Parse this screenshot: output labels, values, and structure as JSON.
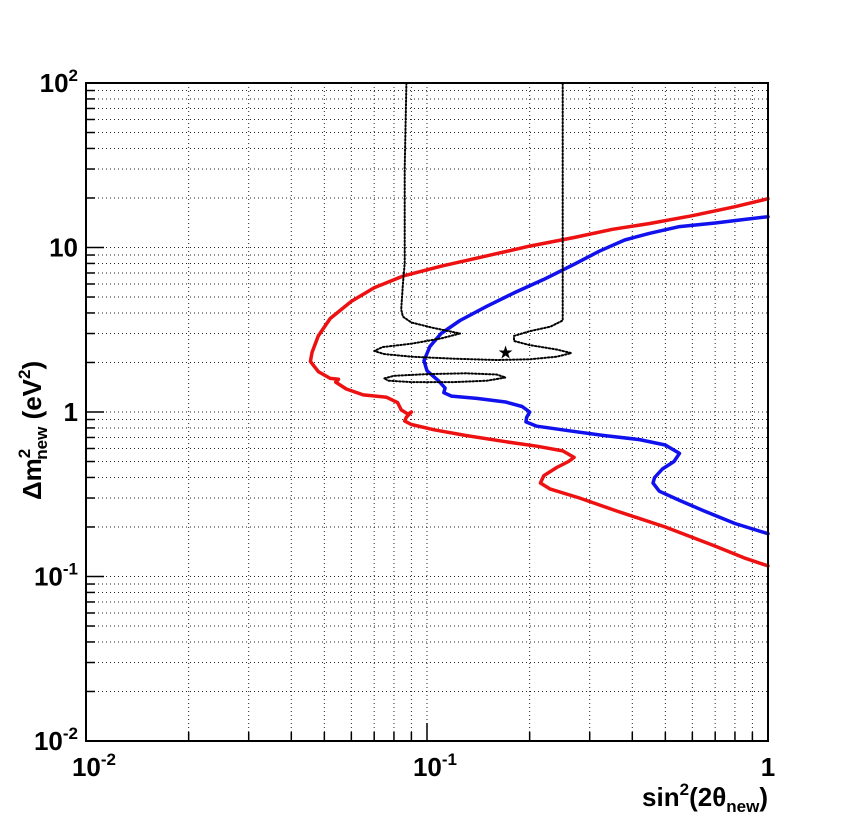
{
  "chart_data": {
    "type": "line",
    "xscale": "log",
    "yscale": "log",
    "xlim": [
      0.01,
      1
    ],
    "ylim": [
      0.01,
      100
    ],
    "grid": true,
    "xlabel": {
      "base": "sin",
      "sup": "2",
      "open": "(2θ",
      "sub": "new",
      "close": ")"
    },
    "ylabel": {
      "base": "Δm",
      "sup": "2",
      "sub": "new",
      "unit_open": " (eV",
      "unit_sup": "2",
      "unit_close": ")"
    },
    "x_ticks": [
      {
        "value": 0.01,
        "base": "10",
        "exp": "-2"
      },
      {
        "value": 0.1,
        "base": "10",
        "exp": "-1"
      },
      {
        "value": 1,
        "base": "1",
        "exp": ""
      }
    ],
    "y_ticks": [
      {
        "value": 0.01,
        "base": "10",
        "exp": "-2"
      },
      {
        "value": 0.1,
        "base": "10",
        "exp": "-1"
      },
      {
        "value": 1,
        "base": "1",
        "exp": ""
      },
      {
        "value": 10,
        "base": "10",
        "exp": ""
      },
      {
        "value": 100,
        "base": "10",
        "exp": "2"
      }
    ],
    "series": [
      {
        "color": "#ee1111",
        "style": "solid",
        "points": [
          [
            1.0,
            19.8
          ],
          [
            0.8,
            17.7
          ],
          [
            0.6,
            15.6
          ],
          [
            0.45,
            14.0
          ],
          [
            0.35,
            12.9
          ],
          [
            0.27,
            11.5
          ],
          [
            0.2,
            10.2
          ],
          [
            0.15,
            8.9
          ],
          [
            0.11,
            7.7
          ],
          [
            0.085,
            6.7
          ],
          [
            0.07,
            5.7
          ],
          [
            0.06,
            4.7
          ],
          [
            0.052,
            3.7
          ],
          [
            0.048,
            2.9
          ],
          [
            0.046,
            2.3
          ],
          [
            0.0455,
            2.03
          ],
          [
            0.048,
            1.76
          ],
          [
            0.052,
            1.6
          ],
          [
            0.055,
            1.58
          ],
          [
            0.054,
            1.52
          ],
          [
            0.058,
            1.38
          ],
          [
            0.065,
            1.27
          ],
          [
            0.076,
            1.23
          ],
          [
            0.082,
            1.14
          ],
          [
            0.084,
            1.03
          ],
          [
            0.088,
            0.97
          ],
          [
            0.09,
            1.0
          ],
          [
            0.087,
            0.93
          ],
          [
            0.086,
            0.88
          ],
          [
            0.09,
            0.84
          ],
          [
            0.105,
            0.78
          ],
          [
            0.13,
            0.72
          ],
          [
            0.17,
            0.66
          ],
          [
            0.21,
            0.62
          ],
          [
            0.25,
            0.58
          ],
          [
            0.27,
            0.53
          ],
          [
            0.26,
            0.5
          ],
          [
            0.24,
            0.46
          ],
          [
            0.22,
            0.41
          ],
          [
            0.215,
            0.37
          ],
          [
            0.23,
            0.34
          ],
          [
            0.28,
            0.3
          ],
          [
            0.36,
            0.25
          ],
          [
            0.5,
            0.2
          ],
          [
            0.7,
            0.153
          ],
          [
            0.85,
            0.13
          ],
          [
            1.0,
            0.116
          ]
        ]
      },
      {
        "color": "#1111ee",
        "style": "solid",
        "points": [
          [
            1.0,
            15.4
          ],
          [
            0.85,
            14.8
          ],
          [
            0.7,
            14.1
          ],
          [
            0.55,
            13.4
          ],
          [
            0.45,
            12.2
          ],
          [
            0.38,
            11.1
          ],
          [
            0.32,
            9.5
          ],
          [
            0.27,
            7.9
          ],
          [
            0.22,
            6.4
          ],
          [
            0.18,
            5.3
          ],
          [
            0.15,
            4.4
          ],
          [
            0.125,
            3.6
          ],
          [
            0.11,
            3.0
          ],
          [
            0.102,
            2.5
          ],
          [
            0.098,
            2.05
          ],
          [
            0.1,
            1.78
          ],
          [
            0.108,
            1.55
          ],
          [
            0.113,
            1.4
          ],
          [
            0.112,
            1.31
          ],
          [
            0.118,
            1.25
          ],
          [
            0.14,
            1.21
          ],
          [
            0.17,
            1.15
          ],
          [
            0.19,
            1.08
          ],
          [
            0.2,
            1.0
          ],
          [
            0.196,
            0.93
          ],
          [
            0.195,
            0.87
          ],
          [
            0.21,
            0.82
          ],
          [
            0.26,
            0.77
          ],
          [
            0.33,
            0.72
          ],
          [
            0.42,
            0.68
          ],
          [
            0.5,
            0.63
          ],
          [
            0.55,
            0.56
          ],
          [
            0.53,
            0.5
          ],
          [
            0.49,
            0.45
          ],
          [
            0.465,
            0.4
          ],
          [
            0.46,
            0.37
          ],
          [
            0.48,
            0.33
          ],
          [
            0.55,
            0.29
          ],
          [
            0.65,
            0.25
          ],
          [
            0.8,
            0.21
          ],
          [
            1.0,
            0.182
          ]
        ]
      },
      {
        "color": "#000000",
        "style": "dotted",
        "points": [
          [
            0.087,
            100
          ],
          [
            0.086,
            30
          ],
          [
            0.086,
            8
          ],
          [
            0.085,
            6
          ],
          [
            0.084,
            4.2
          ],
          [
            0.085,
            3.8
          ],
          [
            0.09,
            3.5
          ],
          [
            0.104,
            3.25
          ],
          [
            0.125,
            3.0
          ],
          [
            0.11,
            2.8
          ],
          [
            0.09,
            2.6
          ],
          [
            0.074,
            2.48
          ],
          [
            0.07,
            2.35
          ],
          [
            0.075,
            2.25
          ],
          [
            0.09,
            2.17
          ],
          [
            0.12,
            2.11
          ],
          [
            0.16,
            2.07
          ],
          [
            0.2,
            2.09
          ],
          [
            0.24,
            2.17
          ],
          [
            0.265,
            2.28
          ],
          [
            0.24,
            2.4
          ],
          [
            0.2,
            2.55
          ],
          [
            0.18,
            2.7
          ],
          [
            0.18,
            2.9
          ],
          [
            0.2,
            3.1
          ],
          [
            0.23,
            3.3
          ],
          [
            0.25,
            3.6
          ],
          [
            0.25,
            5
          ],
          [
            0.25,
            12
          ],
          [
            0.25,
            40
          ],
          [
            0.25,
            100
          ]
        ]
      },
      {
        "color": "#000000",
        "style": "dotted",
        "points": [
          [
            0.075,
            1.6
          ],
          [
            0.08,
            1.66
          ],
          [
            0.1,
            1.7
          ],
          [
            0.13,
            1.72
          ],
          [
            0.16,
            1.69
          ],
          [
            0.17,
            1.62
          ],
          [
            0.15,
            1.55
          ],
          [
            0.12,
            1.52
          ],
          [
            0.09,
            1.52
          ],
          [
            0.077,
            1.55
          ],
          [
            0.075,
            1.6
          ]
        ]
      }
    ],
    "marker": {
      "x": 0.17,
      "y": 2.3,
      "symbol": "★"
    }
  }
}
